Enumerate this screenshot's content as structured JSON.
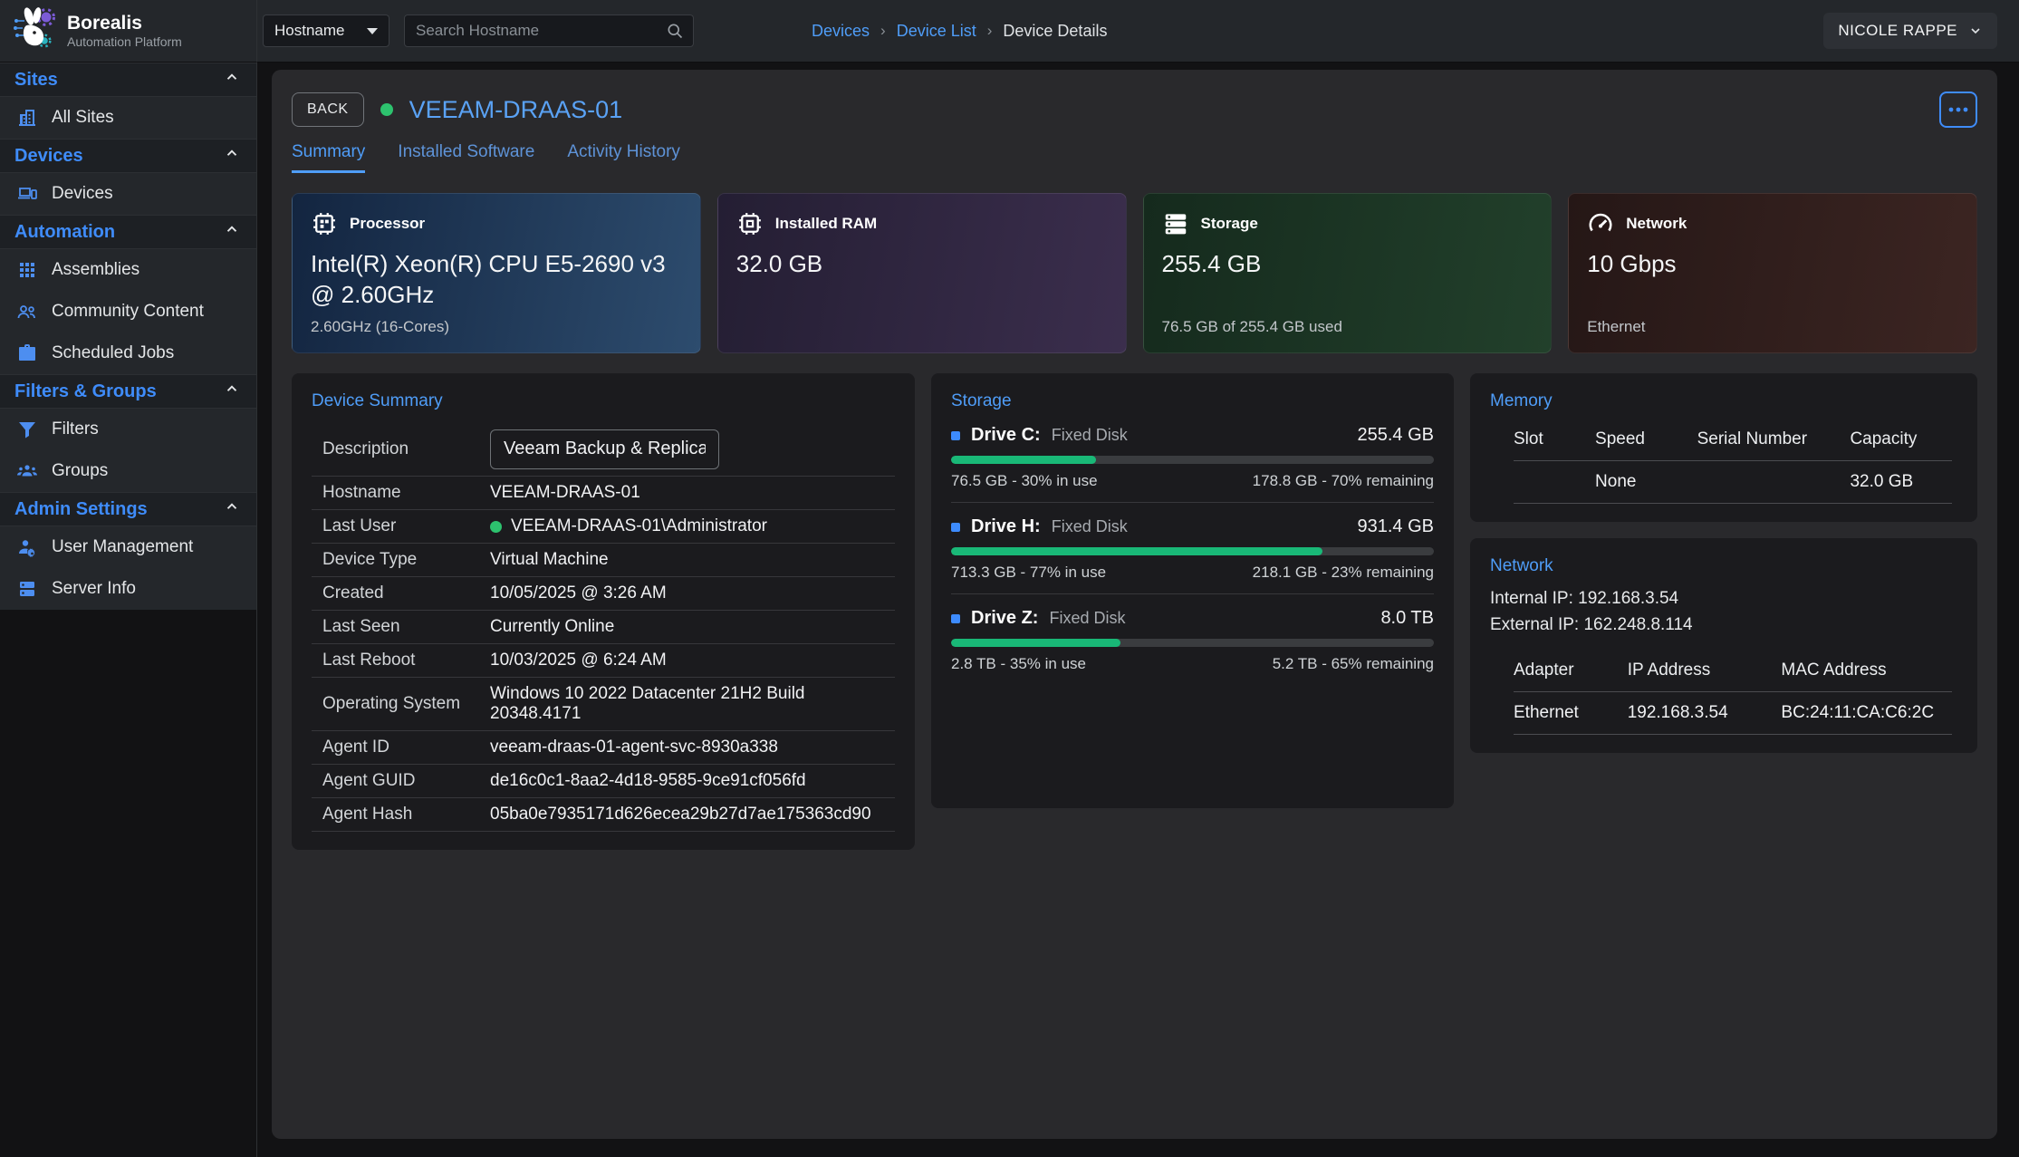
{
  "brand": {
    "name": "Borealis",
    "subtitle": "Automation Platform"
  },
  "topbar": {
    "filter_label": "Hostname",
    "search_placeholder": "Search Hostname",
    "breadcrumbs": [
      "Devices",
      "Device List",
      "Device Details"
    ],
    "user_name": "NICOLE RAPPE"
  },
  "sidebar": {
    "sections": [
      {
        "label": "Sites",
        "items": [
          {
            "label": "All Sites",
            "icon": "building-icon"
          }
        ]
      },
      {
        "label": "Devices",
        "items": [
          {
            "label": "Devices",
            "icon": "devices-icon"
          }
        ]
      },
      {
        "label": "Automation",
        "items": [
          {
            "label": "Assemblies",
            "icon": "grid-icon"
          },
          {
            "label": "Community Content",
            "icon": "people-icon"
          },
          {
            "label": "Scheduled Jobs",
            "icon": "briefcase-icon"
          }
        ]
      },
      {
        "label": "Filters & Groups",
        "items": [
          {
            "label": "Filters",
            "icon": "filter-icon"
          },
          {
            "label": "Groups",
            "icon": "groups-icon"
          }
        ]
      },
      {
        "label": "Admin Settings",
        "items": [
          {
            "label": "User Management",
            "icon": "user-gear-icon"
          },
          {
            "label": "Server Info",
            "icon": "server-icon"
          }
        ]
      }
    ]
  },
  "page": {
    "back_label": "BACK",
    "device_name": "VEEAM-DRAAS-01",
    "status_color": "#2dc26e",
    "tabs": [
      {
        "label": "Summary",
        "active": true
      },
      {
        "label": "Installed Software",
        "active": false
      },
      {
        "label": "Activity History",
        "active": false
      }
    ]
  },
  "stat_cards": [
    {
      "icon": "cpu-icon",
      "title": "Processor",
      "value": "Intel(R) Xeon(R) CPU E5-2690 v3 @ 2.60GHz",
      "subtext": "2.60GHz (16-Cores)",
      "gradient_from": "#132540",
      "gradient_to": "#2d4c6e"
    },
    {
      "icon": "ram-icon",
      "title": "Installed RAM",
      "value": "32.0 GB",
      "subtext": "",
      "gradient_from": "#241e33",
      "gradient_to": "#3b2e4d"
    },
    {
      "icon": "disks-icon",
      "title": "Storage",
      "value": "255.4 GB",
      "subtext": "76.5 GB of 255.4 GB used",
      "gradient_from": "#152a1d",
      "gradient_to": "#22402b"
    },
    {
      "icon": "gauge-icon",
      "title": "Network",
      "value": "10 Gbps",
      "subtext": "Ethernet",
      "gradient_from": "#251716",
      "gradient_to": "#3c2522"
    }
  ],
  "device_summary": {
    "title": "Device Summary",
    "description": {
      "label": "Description",
      "value": "Veeam Backup & Replication"
    },
    "rows": [
      {
        "label": "Hostname",
        "value": "VEEAM-DRAAS-01"
      },
      {
        "label": "Last User",
        "value": "VEEAM-DRAAS-01\\Administrator",
        "dot": true
      },
      {
        "label": "Device Type",
        "value": "Virtual Machine"
      },
      {
        "label": "Created",
        "value": "10/05/2025 @ 3:26 AM"
      },
      {
        "label": "Last Seen",
        "value": "Currently Online"
      },
      {
        "label": "Last Reboot",
        "value": "10/03/2025 @ 6:24 AM"
      },
      {
        "label": "Operating System",
        "value": "Windows 10 2022 Datacenter 21H2 Build 20348.4171"
      },
      {
        "label": "Agent ID",
        "value": "veeam-draas-01-agent-svc-8930a338"
      },
      {
        "label": "Agent GUID",
        "value": "de16c0c1-8aa2-4d18-9585-9ce91cf056fd"
      },
      {
        "label": "Agent Hash",
        "value": "05ba0e7935171d626ecea29b27d7ae175363cd90"
      }
    ]
  },
  "storage_panel": {
    "title": "Storage",
    "bar_color": "#19b877",
    "bullet_color": "#3d8bfd",
    "drives": [
      {
        "name": "Drive C:",
        "type": "Fixed Disk",
        "size": "255.4 GB",
        "used_pct": 30,
        "used_text": "76.5 GB - 30% in use",
        "free_text": "178.8 GB - 70% remaining"
      },
      {
        "name": "Drive H:",
        "type": "Fixed Disk",
        "size": "931.4 GB",
        "used_pct": 77,
        "used_text": "713.3 GB - 77% in use",
        "free_text": "218.1 GB - 23% remaining"
      },
      {
        "name": "Drive Z:",
        "type": "Fixed Disk",
        "size": "8.0 TB",
        "used_pct": 35,
        "used_text": "2.8 TB - 35% in use",
        "free_text": "5.2 TB - 65% remaining"
      }
    ]
  },
  "memory_panel": {
    "title": "Memory",
    "columns": [
      "Slot",
      "Speed",
      "Serial Number",
      "Capacity"
    ],
    "rows": [
      {
        "slot": "",
        "speed": "None",
        "serial": "",
        "capacity": "32.0 GB"
      }
    ]
  },
  "network_panel": {
    "title": "Network",
    "internal_ip": "Internal IP: 192.168.3.54",
    "external_ip": "External IP: 162.248.8.114",
    "columns": [
      "Adapter",
      "IP Address",
      "MAC Address"
    ],
    "rows": [
      {
        "adapter": "Ethernet",
        "ip": "192.168.3.54",
        "mac": "BC:24:11:CA:C6:2C"
      }
    ]
  }
}
